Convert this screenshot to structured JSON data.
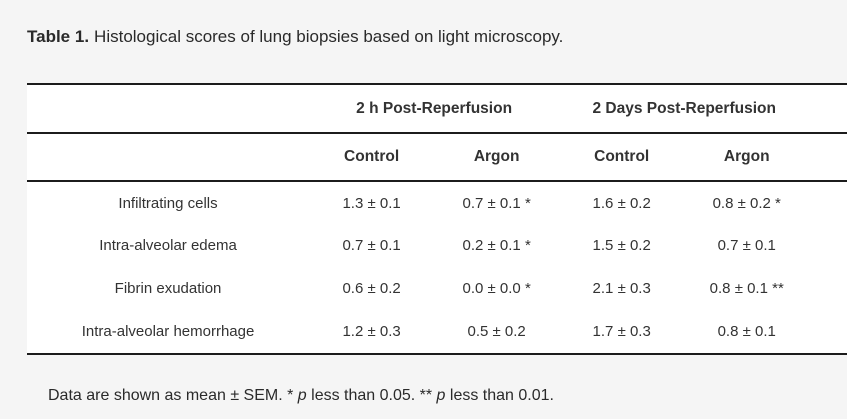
{
  "page": {
    "background_color": "#f5f5f5",
    "table_background_color": "#ffffff",
    "border_color": "#1c1c1c",
    "text_color": "#333333"
  },
  "caption": {
    "label": "Table 1.",
    "text": "Histological scores of lung biopsies based on light microscopy."
  },
  "table": {
    "group_headers": [
      "2 h Post-Reperfusion",
      "2 Days Post-Reperfusion"
    ],
    "sub_headers": [
      "Control",
      "Argon",
      "Control",
      "Argon"
    ],
    "rows": [
      {
        "label": "Infiltrating cells",
        "values": [
          "1.3 ± 0.1",
          "0.7 ± 0.1 *",
          "1.6 ± 0.2",
          "0.8 ± 0.2 *"
        ]
      },
      {
        "label": "Intra-alveolar edema",
        "values": [
          "0.7 ± 0.1",
          "0.2 ± 0.1 *",
          "1.5 ± 0.2",
          "0.7 ± 0.1"
        ]
      },
      {
        "label": "Fibrin exudation",
        "values": [
          "0.6 ± 0.2",
          "0.0 ± 0.0 *",
          "2.1 ± 0.3",
          "0.8 ± 0.1 **"
        ]
      },
      {
        "label": "Intra-alveolar hemorrhage",
        "values": [
          "1.2 ± 0.3",
          "0.5 ± 0.2",
          "1.7 ± 0.3",
          "0.8 ± 0.1"
        ]
      }
    ]
  },
  "footnote": {
    "segments": [
      {
        "text": "Data are shown as mean ± SEM. * ",
        "italic": false
      },
      {
        "text": "p",
        "italic": true
      },
      {
        "text": " less than 0.05. ** ",
        "italic": false
      },
      {
        "text": "p",
        "italic": true
      },
      {
        "text": " less than 0.01.",
        "italic": false
      }
    ]
  }
}
